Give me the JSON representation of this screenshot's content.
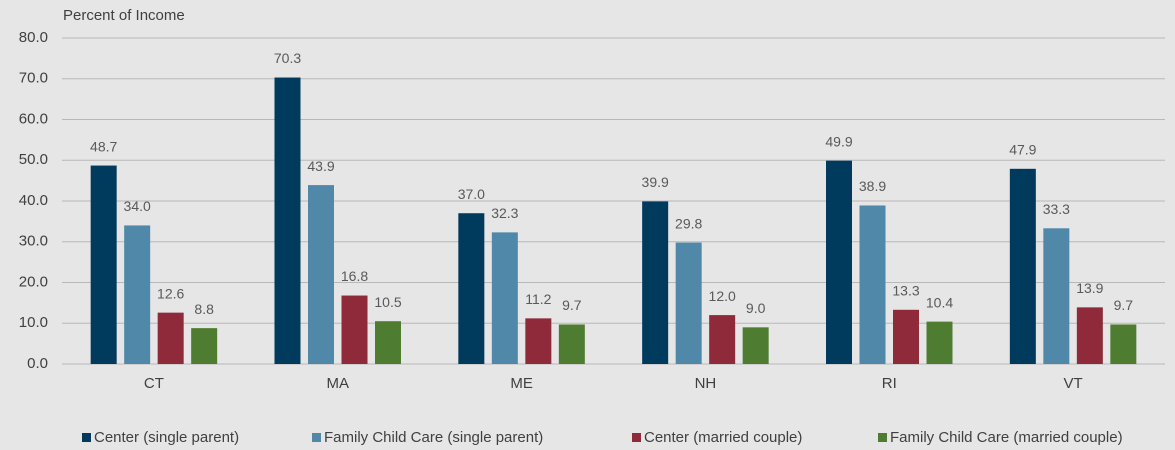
{
  "chart_data": {
    "type": "bar",
    "y_label": "Percent of Income",
    "categories": [
      "CT",
      "MA",
      "ME",
      "NH",
      "RI",
      "VT"
    ],
    "series": [
      {
        "name": "Center (single parent)",
        "color": "#003a5d",
        "values": [
          48.7,
          70.3,
          37.0,
          39.9,
          49.9,
          47.9
        ],
        "value_labels": [
          "48.7",
          "70.3",
          "37.0",
          "39.9",
          "49.9",
          "47.9"
        ]
      },
      {
        "name": "Family Child Care (single parent)",
        "color": "#4f88a8",
        "values": [
          34.0,
          43.9,
          32.3,
          29.8,
          38.9,
          33.3
        ],
        "value_labels": [
          "34.0",
          "43.9",
          "32.3",
          "29.8",
          "38.9",
          "33.3"
        ]
      },
      {
        "name": "Center (married couple)",
        "color": "#8e2a3a",
        "values": [
          12.6,
          16.8,
          11.2,
          12.0,
          13.3,
          13.9
        ],
        "value_labels": [
          "12.6",
          "16.8",
          "11.2",
          "12.0",
          "13.3",
          "13.9"
        ]
      },
      {
        "name": "Family Child Care (married couple)",
        "color": "#4e7d32",
        "values": [
          8.8,
          10.5,
          9.7,
          9.0,
          10.4,
          9.7
        ],
        "value_labels": [
          "8.8",
          "10.5",
          "9.7",
          "9.0",
          "10.4",
          "9.7"
        ]
      }
    ],
    "ylim": [
      0,
      80
    ],
    "yticks": [
      {
        "value": 0,
        "label": "0.0"
      },
      {
        "value": 10,
        "label": "10.0"
      },
      {
        "value": 20,
        "label": "20.0"
      },
      {
        "value": 30,
        "label": "30.0"
      },
      {
        "value": 40,
        "label": "40.0"
      },
      {
        "value": 50,
        "label": "50.0"
      },
      {
        "value": 60,
        "label": "60.0"
      },
      {
        "value": 70,
        "label": "70.0"
      },
      {
        "value": 80,
        "label": "80.0"
      }
    ],
    "grid": true,
    "legend": "bottom"
  }
}
